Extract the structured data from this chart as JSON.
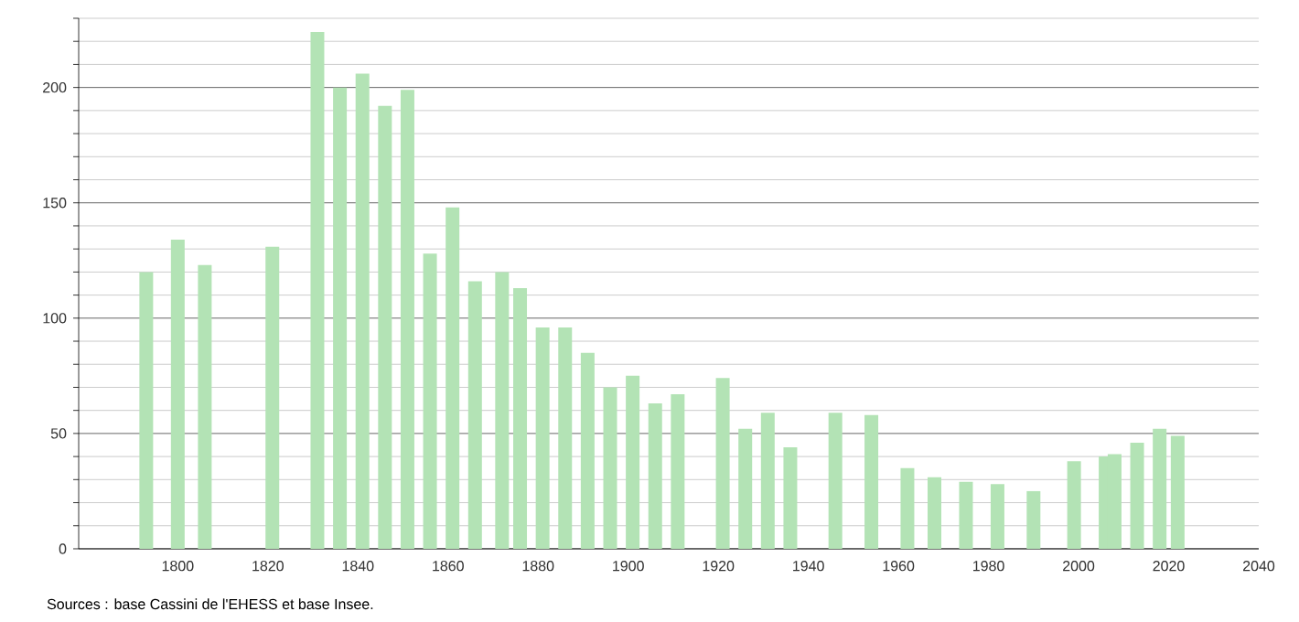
{
  "chart_data": {
    "type": "bar",
    "color": "#b3e3b5",
    "x": [
      1793,
      1800,
      1806,
      1821,
      1831,
      1836,
      1841,
      1846,
      1851,
      1856,
      1861,
      1866,
      1872,
      1876,
      1881,
      1886,
      1891,
      1896,
      1901,
      1906,
      1911,
      1921,
      1926,
      1931,
      1936,
      1946,
      1954,
      1962,
      1968,
      1975,
      1982,
      1990,
      1999,
      2006,
      2008,
      2013,
      2018,
      2022
    ],
    "values": [
      120,
      134,
      123,
      131,
      224,
      200,
      206,
      192,
      199,
      128,
      148,
      116,
      120,
      113,
      96,
      96,
      85,
      70,
      75,
      63,
      67,
      74,
      52,
      59,
      44,
      59,
      58,
      35,
      31,
      29,
      28,
      25,
      38,
      40,
      41,
      46,
      52,
      49
    ],
    "xlim": [
      1778,
      2040
    ],
    "xticks": [
      1800,
      1820,
      1840,
      1860,
      1880,
      1900,
      1920,
      1940,
      1960,
      1980,
      2000,
      2020,
      2040
    ],
    "ylim": [
      0,
      230
    ],
    "yticks": [
      0,
      {
        "value": 10,
        "label": null
      },
      {
        "value": 20,
        "label": null
      },
      {
        "value": 30,
        "label": null
      },
      {
        "value": 40,
        "label": null
      },
      50,
      {
        "value": 60,
        "label": null
      },
      {
        "value": 70,
        "label": null
      },
      {
        "value": 80,
        "label": null
      },
      {
        "value": 90,
        "label": null
      },
      100,
      {
        "value": 110,
        "label": null
      },
      {
        "value": 120,
        "label": null
      },
      {
        "value": 130,
        "label": null
      },
      {
        "value": 140,
        "label": null
      },
      150,
      {
        "value": 160,
        "label": null
      },
      {
        "value": 170,
        "label": null
      },
      {
        "value": 180,
        "label": null
      },
      {
        "value": 190,
        "label": null
      },
      200,
      {
        "value": 210,
        "label": null
      },
      {
        "value": 220,
        "label": null
      },
      {
        "value": 230,
        "label": null
      }
    ],
    "grid": "y",
    "annotations": [
      "Sources : base Cassini de l'EHESS et base Insee."
    ]
  }
}
